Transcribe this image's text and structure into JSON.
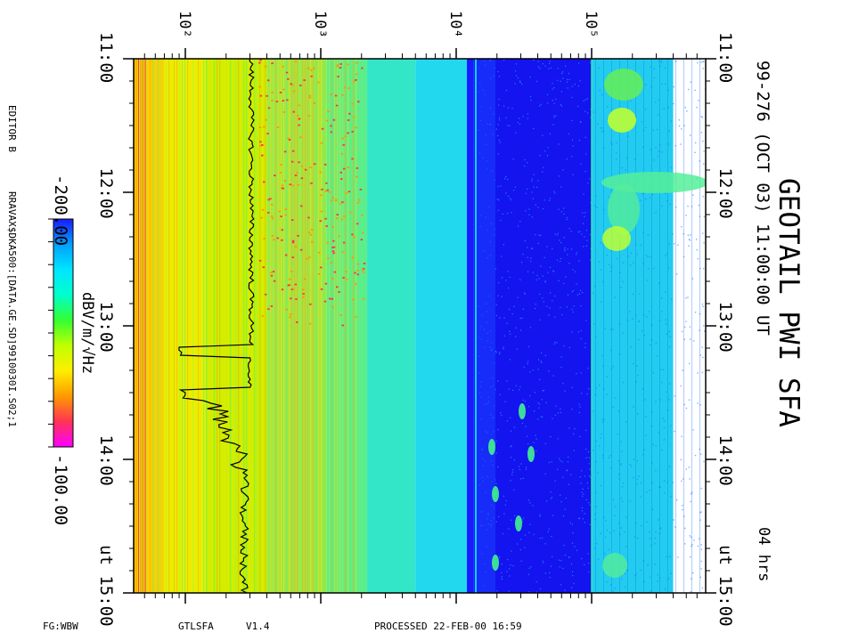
{
  "header": {
    "title": "GEOTAIL PWI SFA",
    "date_line": "99-276 (OCT 03) 11:00:00 UT",
    "duration": "04 hrs"
  },
  "footer": {
    "left": "FG:WBW",
    "program": "GTLSFA",
    "version": "V1.4",
    "processed": "PROCESSED 22-FEB-00  16:59"
  },
  "sidebar": {
    "editor": "EDITOR B",
    "file": "RRAVAX$DKA500:[DATA.GE.SD]9910030I.S02;1",
    "colorbar_min": "-200.00",
    "colorbar_max": "-100.00",
    "colorbar_units": "dBV/m/√Hz"
  },
  "colors": {
    "scale": [
      "#ff00ff",
      "#ff3355",
      "#ff9900",
      "#ffee00",
      "#bfff00",
      "#33ff33",
      "#00ffcc",
      "#00e5ff",
      "#00a0ff",
      "#1a1aff"
    ],
    "quiet_band": "#1414f0"
  },
  "chart_data": {
    "type": "heatmap",
    "title": "GEOTAIL PWI SFA",
    "x_axis": {
      "quantity": "time (UT)",
      "ticks": [
        "11:00",
        "12:00",
        "13:00",
        "14:00",
        "ut 15:00"
      ],
      "range": [
        "11:00",
        "15:00"
      ]
    },
    "y_axis": {
      "quantity": "frequency (Hz)",
      "scale": "log",
      "ticks": [
        "10²",
        "10³",
        "10⁴",
        "10⁵"
      ],
      "tick_values": [
        100,
        1000,
        10000,
        100000
      ]
    },
    "color_axis": {
      "label": "dBV/m/√Hz",
      "range": [
        -200,
        -100
      ]
    }
  }
}
